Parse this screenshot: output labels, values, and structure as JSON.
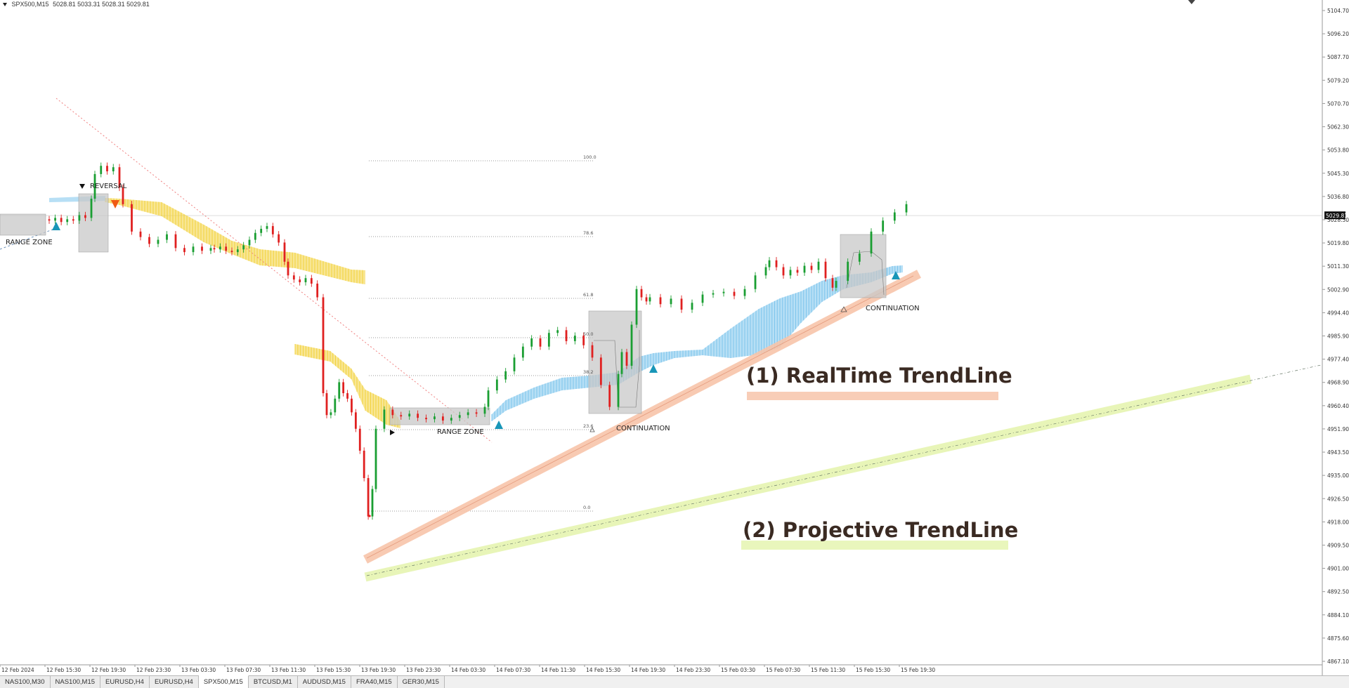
{
  "symbol": {
    "name": "SPX500,M15",
    "ohlc": "5028.81 5033.31 5028.31 5029.81"
  },
  "price_axis": {
    "labels": [
      "5104.70",
      "5096.20",
      "5087.70",
      "5079.20",
      "5070.70",
      "5062.30",
      "5053.80",
      "5045.30",
      "5036.80",
      "5028.30",
      "5019.80",
      "5011.30",
      "5002.90",
      "4994.40",
      "4985.90",
      "4977.40",
      "4968.90",
      "4960.40",
      "4951.90",
      "4943.50",
      "4935.00",
      "4926.50",
      "4918.00",
      "4909.50",
      "4901.00",
      "4892.50",
      "4884.10",
      "4875.60",
      "4867.10"
    ],
    "current_price": "5029.81"
  },
  "time_axis": {
    "labels": [
      "12 Feb 2024",
      "12 Feb 15:30",
      "12 Feb 19:30",
      "12 Feb 23:30",
      "13 Feb 03:30",
      "13 Feb 07:30",
      "13 Feb 11:30",
      "13 Feb 15:30",
      "13 Feb 19:30",
      "13 Feb 23:30",
      "14 Feb 03:30",
      "14 Feb 07:30",
      "14 Feb 11:30",
      "14 Feb 15:30",
      "14 Feb 19:30",
      "14 Feb 23:30",
      "15 Feb 03:30",
      "15 Feb 07:30",
      "15 Feb 11:30",
      "15 Feb 15:30",
      "15 Feb 19:30"
    ]
  },
  "fib_levels": [
    "100.0",
    "78.6",
    "61.8",
    "50.0",
    "38.2",
    "23.6",
    "0.0"
  ],
  "annotations": {
    "reversal": "REVERSAL",
    "range_zone": "RANGE ZONE",
    "continuation": "CONTINUATION",
    "realtime_trendline": "(1) RealTime TrendLine",
    "projective_trendline": "(2) Projective TrendLine"
  },
  "tabs": [
    "NAS100,M30",
    "NAS100,M15",
    "EURUSD,H4",
    "EURUSD,H4",
    "SPX500,M15",
    "BTCUSD,M1",
    "AUDUSD,M15",
    "FRA40,M15",
    "GER30,M15"
  ],
  "active_tab": "SPX500,M15",
  "colors": {
    "bull_candle": "#1a9e32",
    "bear_candle": "#e02020",
    "cloud_yellow": "#f2d23c",
    "cloud_blue": "#7cc4ec",
    "realtime_line": "#f7c4aa",
    "projective_line": "#e8f5b8",
    "signal_up": "#1896b8",
    "signal_down": "#f05a14",
    "box_gray": "#c8c8c8"
  },
  "chart_data": {
    "type": "candlestick",
    "symbol": "SPX500,M15",
    "ylim": [
      4863.0,
      5110.0
    ],
    "price_path": [
      5028.5,
      5028.0,
      5029.0,
      5027.5,
      5028.5,
      5028.0,
      5030.0,
      5029.0,
      5036.0,
      5045.0,
      5048.0,
      5046.0,
      5047.5,
      5040.0,
      5034.0,
      5024.0,
      5022.0,
      5019.5,
      5021.0,
      5023.0,
      5018.0,
      5016.5,
      5018.5,
      5017.0,
      5018.0,
      5017.5,
      5018.5,
      5017.0,
      5016.5,
      5017.5,
      5019.0,
      5021.0,
      5023.5,
      5025.0,
      5026.0,
      5023.0,
      5020.0,
      5013.0,
      5008.0,
      5006.5,
      5005.5,
      5007.0,
      5005.0,
      5000.0,
      4965.0,
      4957.0,
      4958.0,
      4963.0,
      4969.0,
      4965.0,
      4963.0,
      4958.0,
      4952.0,
      4944.0,
      4934.0,
      4920.0,
      4930.0,
      4952.0,
      4959.0,
      4957.0,
      4956.5,
      4957.5,
      4956.0,
      4955.5,
      4956.5,
      4955.0,
      4956.0,
      4957.0,
      4958.0,
      4957.5,
      4960.0,
      4966.0,
      4970.0,
      4973.0,
      4978.0,
      4982.0,
      4985.0,
      4982.0,
      4987.0,
      4988.0,
      4984.0,
      4986.0,
      4982.5,
      4978.0,
      4968.0,
      4960.0,
      4972.0,
      4980.0,
      4975.0,
      4990.0,
      5003.0,
      5000.0,
      4998.5,
      5000.0,
      4997.5,
      4999.5,
      4995.5,
      4998.0,
      5001.0,
      5001.5,
      5002.0,
      5000.5,
      5003.0,
      5008.0,
      5011.0,
      5013.5,
      5011.0,
      5008.0,
      5010.0,
      5009.0,
      5011.5,
      5010.0,
      5013.0,
      5007.0,
      5003.5,
      5006.0,
      5013.0,
      5016.0,
      5024.0,
      5028.0,
      5031.0,
      5034.0
    ],
    "signals": [
      {
        "type": "buy",
        "label": ""
      },
      {
        "type": "sell",
        "label": "REVERSAL"
      },
      {
        "type": "buy",
        "label": "RANGE ZONE"
      },
      {
        "type": "buy",
        "label": "CONTINUATION"
      },
      {
        "type": "buy",
        "label": "CONTINUATION"
      }
    ]
  }
}
